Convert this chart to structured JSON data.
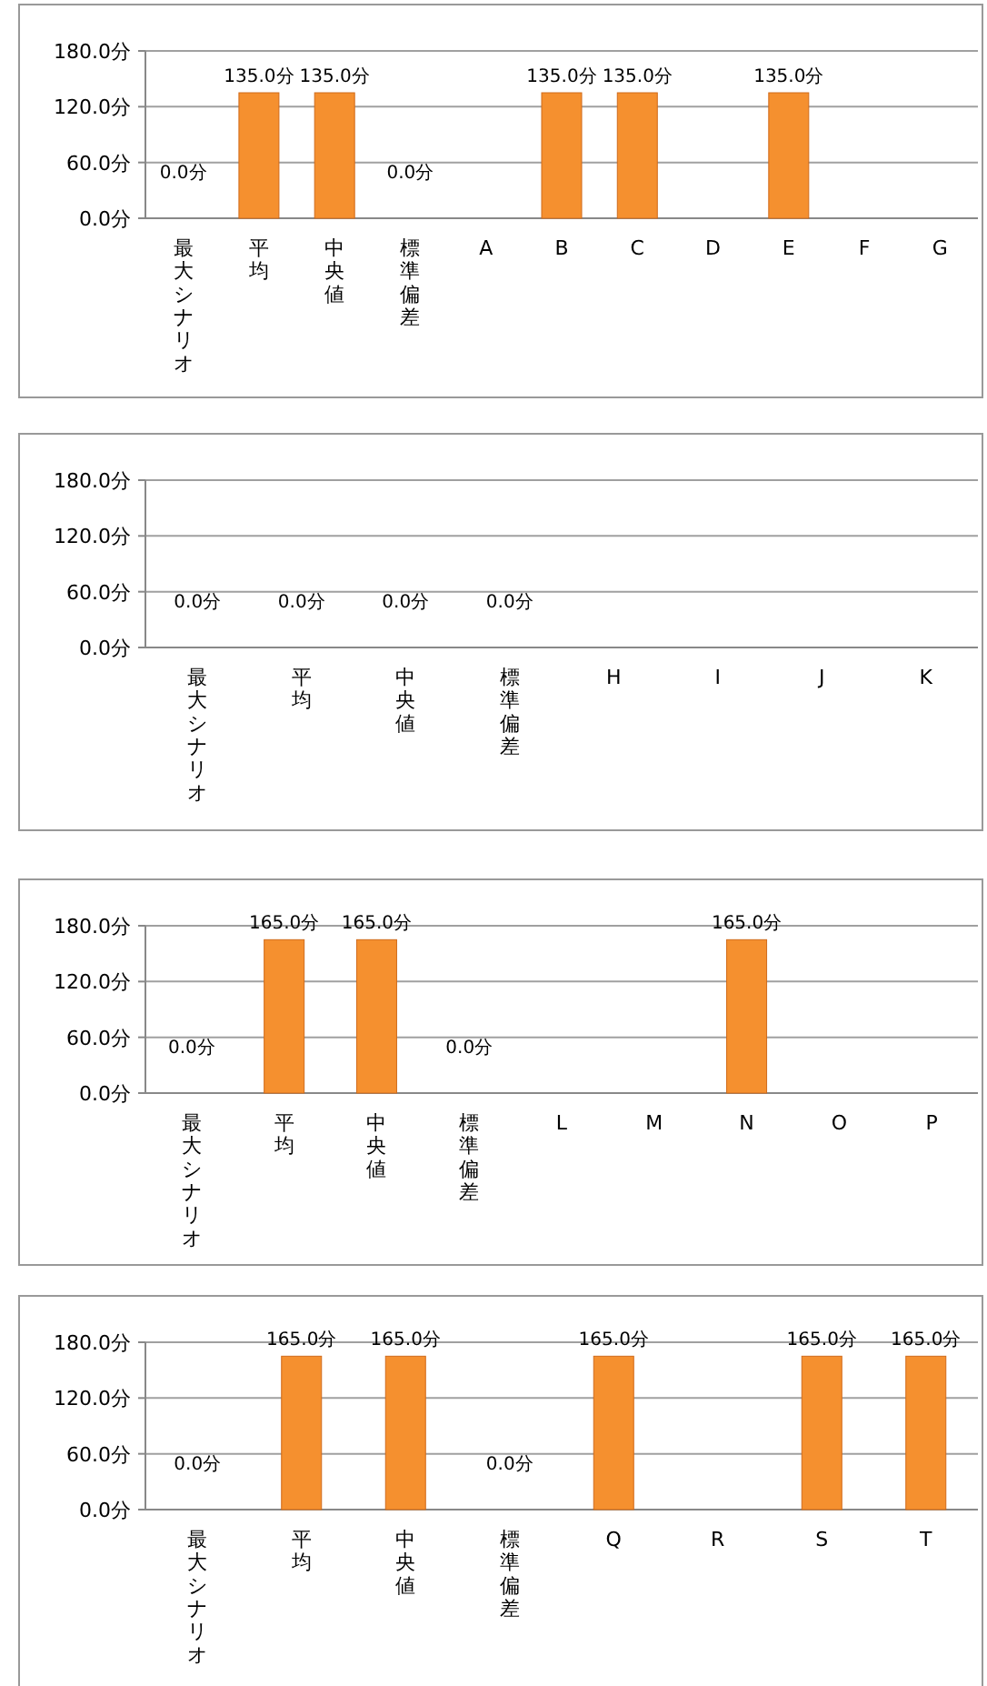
{
  "chart_data": [
    {
      "type": "bar",
      "categories": [
        "最大シナリオ",
        "平均",
        "中央値",
        "標準偏差",
        "A",
        "B",
        "C",
        "D",
        "E",
        "F",
        "G"
      ],
      "values": [
        0,
        135,
        135,
        0,
        null,
        135,
        135,
        null,
        135,
        null,
        null
      ],
      "value_labels": [
        "0.0分",
        "135.0分",
        "135.0分",
        "0.0分",
        null,
        "135.0分",
        "135.0分",
        null,
        "135.0分",
        null,
        null
      ],
      "color": "#f5902f",
      "ylim": [
        0,
        180
      ],
      "yticks": [
        {
          "value": 0,
          "label": "0.0分"
        },
        {
          "value": 60,
          "label": "60.0分"
        },
        {
          "value": 120,
          "label": "120.0分"
        },
        {
          "value": 180,
          "label": "180.0分"
        }
      ],
      "grid": "y"
    },
    {
      "type": "bar",
      "categories": [
        "最大シナリオ",
        "平均",
        "中央値",
        "標準偏差",
        "H",
        "I",
        "J",
        "K"
      ],
      "values": [
        0,
        0,
        0,
        0,
        null,
        null,
        null,
        null
      ],
      "value_labels": [
        "0.0分",
        "0.0分",
        "0.0分",
        "0.0分",
        null,
        null,
        null,
        null
      ],
      "color": "#f5902f",
      "ylim": [
        0,
        180
      ],
      "yticks": [
        {
          "value": 0,
          "label": "0.0分"
        },
        {
          "value": 60,
          "label": "60.0分"
        },
        {
          "value": 120,
          "label": "120.0分"
        },
        {
          "value": 180,
          "label": "180.0分"
        }
      ],
      "grid": "y"
    },
    {
      "type": "bar",
      "categories": [
        "最大シナリオ",
        "平均",
        "中央値",
        "標準偏差",
        "L",
        "M",
        "N",
        "O",
        "P"
      ],
      "values": [
        0,
        165,
        165,
        0,
        null,
        null,
        165,
        null,
        null
      ],
      "value_labels": [
        "0.0分",
        "165.0分",
        "165.0分",
        "0.0分",
        null,
        null,
        "165.0分",
        null,
        null
      ],
      "color": "#f5902f",
      "ylim": [
        0,
        180
      ],
      "yticks": [
        {
          "value": 0,
          "label": "0.0分"
        },
        {
          "value": 60,
          "label": "60.0分"
        },
        {
          "value": 120,
          "label": "120.0分"
        },
        {
          "value": 180,
          "label": "180.0分"
        }
      ],
      "grid": "y"
    },
    {
      "type": "bar",
      "categories": [
        "最大シナリオ",
        "平均",
        "中央値",
        "標準偏差",
        "Q",
        "R",
        "S",
        "T"
      ],
      "values": [
        0,
        165,
        165,
        0,
        165,
        null,
        165,
        165
      ],
      "value_labels": [
        "0.0分",
        "165.0分",
        "165.0分",
        "0.0分",
        "165.0分",
        null,
        "165.0分",
        "165.0分"
      ],
      "color": "#f5902f",
      "ylim": [
        0,
        180
      ],
      "yticks": [
        {
          "value": 0,
          "label": "0.0分"
        },
        {
          "value": 60,
          "label": "60.0分"
        },
        {
          "value": 120,
          "label": "120.0分"
        },
        {
          "value": 180,
          "label": "180.0分"
        }
      ],
      "grid": "y"
    }
  ]
}
